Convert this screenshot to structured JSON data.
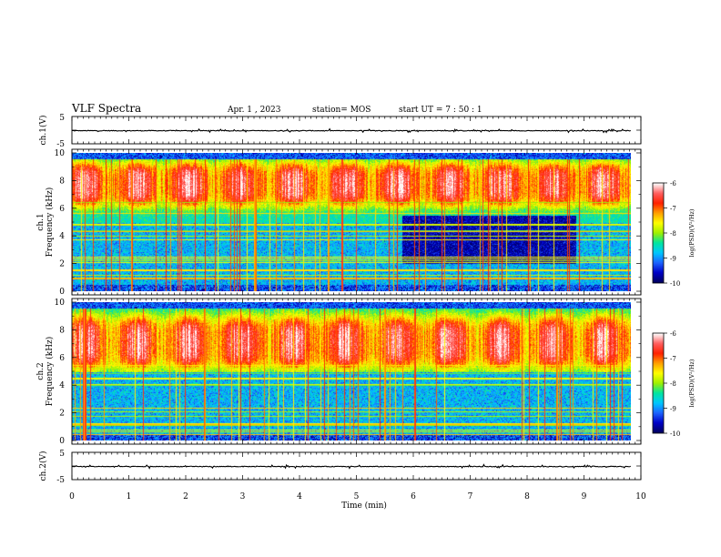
{
  "header": {
    "title": "VLF Spectra",
    "date": "Apr. 1 , 2023",
    "station": "station= MOS",
    "start_time": "start UT =  7 : 50 : 1"
  },
  "colors": {
    "colormap": [
      "#000060",
      "#0000c8",
      "#1e64ff",
      "#00c8ff",
      "#00e6a0",
      "#a0f000",
      "#ffff00",
      "#ffa000",
      "#ff2000",
      "#ff6060",
      "#ffffff"
    ],
    "trace": "#000000",
    "axis": "#000000"
  },
  "chart_data": [
    {
      "type": "line",
      "panel": "waveform-ch1",
      "ylabel": "ch.1(V)",
      "ylim": [
        -5,
        5
      ],
      "yticks": [
        "5",
        "-5"
      ],
      "xlim": [
        0,
        10
      ],
      "series": [
        {
          "values_level": -0.2
        }
      ]
    },
    {
      "type": "heatmap",
      "panel": "spectrogram-ch1",
      "ylabel_lines": [
        "ch.1",
        "Frequency (kHz)"
      ],
      "ylim": [
        0,
        10
      ],
      "yticks": [
        "0",
        "2",
        "4",
        "6",
        "8",
        "10"
      ],
      "xlim": [
        0,
        9.82
      ],
      "emission_band_khz": [
        6,
        9.5
      ],
      "quiet_interval_min": [
        5.8,
        8.85
      ],
      "quiet_interval_khz": [
        2,
        5.5
      ],
      "colorbar": {
        "label": "log(PSD)(V²/Hz)",
        "ticks": [
          "-6",
          "-7",
          "-8",
          "-9",
          "-10"
        ],
        "range": [
          -10,
          -6
        ]
      }
    },
    {
      "type": "heatmap",
      "panel": "spectrogram-ch2",
      "ylabel_lines": [
        "ch.2",
        "Frequency (kHz)"
      ],
      "ylim": [
        0,
        10
      ],
      "yticks": [
        "0",
        "2",
        "4",
        "6",
        "8",
        "10"
      ],
      "xlim": [
        0,
        9.82
      ],
      "emission_band_khz": [
        5,
        9.2
      ],
      "colorbar": {
        "label": "log(PSD)(V²/Hz)",
        "ticks": [
          "-6",
          "-7",
          "-8",
          "-9",
          "-10"
        ],
        "range": [
          -10,
          -6
        ]
      }
    },
    {
      "type": "line",
      "panel": "waveform-ch2",
      "ylabel": "ch.2(V)",
      "ylim": [
        -5,
        5
      ],
      "yticks": [
        "5",
        "-5"
      ],
      "xlim": [
        0,
        10
      ],
      "series": [
        {
          "values_level": -0.2
        }
      ]
    }
  ],
  "xaxis": {
    "label": "Time (min)",
    "ticks": [
      "0",
      "1",
      "2",
      "3",
      "4",
      "5",
      "6",
      "7",
      "8",
      "9",
      "10"
    ],
    "range": [
      0,
      10
    ]
  }
}
